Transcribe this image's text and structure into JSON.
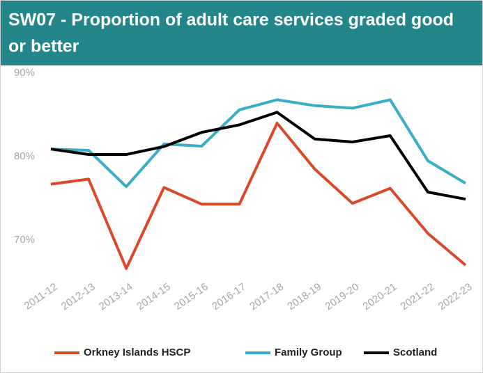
{
  "chart_data": {
    "type": "line",
    "title": [
      "SW07 - Proportion of adult care services graded good",
      "or better"
    ],
    "categories": [
      "2011-12",
      "2012-13",
      "2013-14",
      "2014-15",
      "2015-16",
      "2016-17",
      "2017-18",
      "2018-19",
      "2019-20",
      "2020-21",
      "2021-22",
      "2022-23"
    ],
    "series": [
      {
        "name": "Orkney Islands HSCP",
        "color": "#d9492a",
        "values": [
          76.7,
          77.3,
          66.6,
          76.3,
          74.3,
          74.3,
          84.0,
          78.5,
          74.4,
          76.2,
          70.8,
          67.0
        ]
      },
      {
        "name": "Family Group",
        "color": "#3aaec6",
        "values": [
          80.9,
          80.75,
          76.4,
          81.5,
          81.25,
          85.6,
          86.8,
          86.1,
          85.8,
          86.8,
          79.5,
          76.8
        ]
      },
      {
        "name": "Scotland",
        "color": "#000000",
        "values": [
          80.9,
          80.25,
          80.25,
          81.2,
          82.9,
          83.8,
          85.3,
          82.1,
          81.75,
          82.5,
          75.75,
          74.9
        ]
      }
    ],
    "ylim": [
      66,
      91
    ],
    "yticks": [
      {
        "value": 70,
        "label": "70%"
      },
      {
        "value": 80,
        "label": "80%"
      },
      {
        "value": 90,
        "label": "90%"
      }
    ],
    "grid": false,
    "legend": "bottom"
  }
}
